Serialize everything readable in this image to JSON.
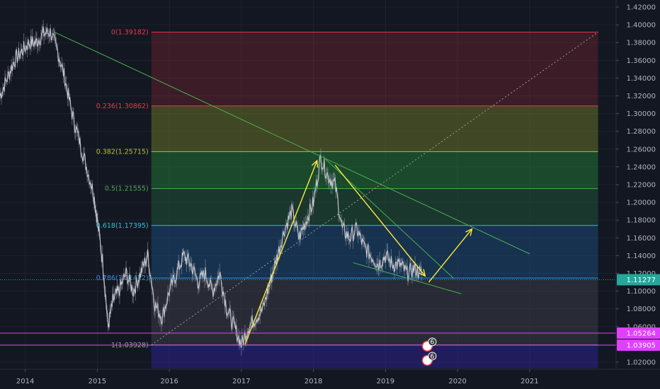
{
  "chart_data": {
    "type": "line",
    "symbol": "",
    "x_ticks": [
      "2014",
      "2015",
      "2016",
      "2017",
      "2018",
      "2019",
      "2020",
      "2021"
    ],
    "y_ticks": [
      "1.42000",
      "1.40000",
      "1.38000",
      "1.36000",
      "1.34000",
      "1.32000",
      "1.30000",
      "1.28000",
      "1.26000",
      "1.24000",
      "1.22000",
      "1.20000",
      "1.18000",
      "1.16000",
      "1.14000",
      "1.12000",
      "1.10000",
      "1.08000",
      "1.06000",
      "1.04000",
      "1.02000"
    ],
    "ylim": [
      1.012,
      1.428
    ],
    "xlim": [
      2013.65,
      2022.2
    ],
    "grid": true,
    "price_series": {
      "x": [
        2013.65,
        2013.75,
        2013.85,
        2013.95,
        2014.05,
        2014.15,
        2014.25,
        2014.35,
        2014.45,
        2014.55,
        2014.65,
        2014.75,
        2014.85,
        2014.95,
        2015.0,
        2015.08,
        2015.15,
        2015.22,
        2015.3,
        2015.4,
        2015.5,
        2015.6,
        2015.7,
        2015.8,
        2015.9,
        2016.0,
        2016.1,
        2016.2,
        2016.3,
        2016.4,
        2016.5,
        2016.6,
        2016.7,
        2016.8,
        2016.9,
        2017.0,
        2017.1,
        2017.2,
        2017.3,
        2017.4,
        2017.5,
        2017.6,
        2017.7,
        2017.8,
        2017.9,
        2018.0,
        2018.1,
        2018.2,
        2018.3,
        2018.4,
        2018.5,
        2018.6,
        2018.7,
        2018.8,
        2018.9,
        2019.0,
        2019.1,
        2019.2,
        2019.3,
        2019.4,
        2019.5
      ],
      "y": [
        1.32,
        1.34,
        1.36,
        1.37,
        1.38,
        1.38,
        1.39,
        1.392,
        1.37,
        1.34,
        1.3,
        1.27,
        1.24,
        1.21,
        1.18,
        1.13,
        1.06,
        1.09,
        1.1,
        1.12,
        1.1,
        1.12,
        1.14,
        1.085,
        1.07,
        1.1,
        1.12,
        1.14,
        1.13,
        1.11,
        1.12,
        1.1,
        1.12,
        1.08,
        1.06,
        1.04,
        1.06,
        1.07,
        1.08,
        1.11,
        1.14,
        1.17,
        1.19,
        1.16,
        1.18,
        1.2,
        1.25,
        1.23,
        1.22,
        1.17,
        1.16,
        1.17,
        1.15,
        1.14,
        1.13,
        1.14,
        1.13,
        1.13,
        1.12,
        1.125,
        1.12
      ]
    },
    "fib": {
      "x_start": 2015.75,
      "x_end": 2021.95,
      "levels": [
        {
          "ratio": "0",
          "price": 1.39182,
          "label": "0(1.39182)",
          "color": "#f23645",
          "fill": "rgba(242,54,69,0.18)"
        },
        {
          "ratio": "0.236",
          "price": 1.30862,
          "label": "0.236(1.30862)",
          "color": "#f23645",
          "fill": "rgba(150,160,40,0.35)"
        },
        {
          "ratio": "0.382",
          "price": 1.25715,
          "label": "0.382(1.25715)",
          "color": "#b0c238",
          "fill": "rgba(40,150,60,0.40)"
        },
        {
          "ratio": "0.5",
          "price": 1.21555,
          "label": "0.5(1.21555)",
          "color": "#4caf50",
          "fill": "rgba(40,130,70,0.30)"
        },
        {
          "ratio": "0.618",
          "price": 1.17395,
          "label": "0.618(1.17395)",
          "color": "#26c6da",
          "fill": "rgba(30,110,170,0.32)"
        },
        {
          "ratio": "0.786",
          "price": 1.11472,
          "label": "0.786(1.11472)",
          "color": "#2196f3",
          "fill": "rgba(90,90,100,0.30)"
        },
        {
          "ratio": "1",
          "price": 1.03928,
          "label": "1(1.03928)",
          "color": "#9e9e9e",
          "fill": "rgba(60,40,200,0.35)"
        }
      ],
      "below_limit": 1.013
    },
    "horizontal_lines": [
      {
        "price": 1.05264,
        "label": "1.05264",
        "color": "#e040fb"
      },
      {
        "price": 1.03905,
        "label": "1.03905",
        "color": "#e040fb"
      }
    ],
    "current_price": {
      "price": 1.11277,
      "label": "1.11277",
      "color": "#26a69a"
    },
    "trend_lines": [
      {
        "x1": 2014.4,
        "y1": 1.392,
        "x2": 2021.0,
        "y2": 1.142,
        "color": "#4caf50"
      },
      {
        "x1": 2018.15,
        "y1": 1.25,
        "x2": 2019.95,
        "y2": 1.114,
        "color": "#4caf50"
      },
      {
        "x1": 2018.55,
        "y1": 1.132,
        "x2": 2020.05,
        "y2": 1.097,
        "color": "#4caf50"
      },
      {
        "x1": 2015.75,
        "y1": 1.03928,
        "x2": 2021.95,
        "y2": 1.39182,
        "color": "#9e9e9e",
        "dotted": true
      }
    ],
    "arrows": [
      {
        "x1": 2017.05,
        "y1": 1.04,
        "x2": 2018.05,
        "y2": 1.247
      },
      {
        "x1": 2018.3,
        "y1": 1.242,
        "x2": 2019.55,
        "y2": 1.117
      },
      {
        "x1": 2019.6,
        "y1": 1.11,
        "x2": 2020.2,
        "y2": 1.17
      }
    ],
    "event_badges": [
      {
        "x": 2019.58,
        "price": 1.038,
        "count": "6"
      },
      {
        "x": 2019.58,
        "price": 1.022,
        "count": "6"
      }
    ]
  }
}
